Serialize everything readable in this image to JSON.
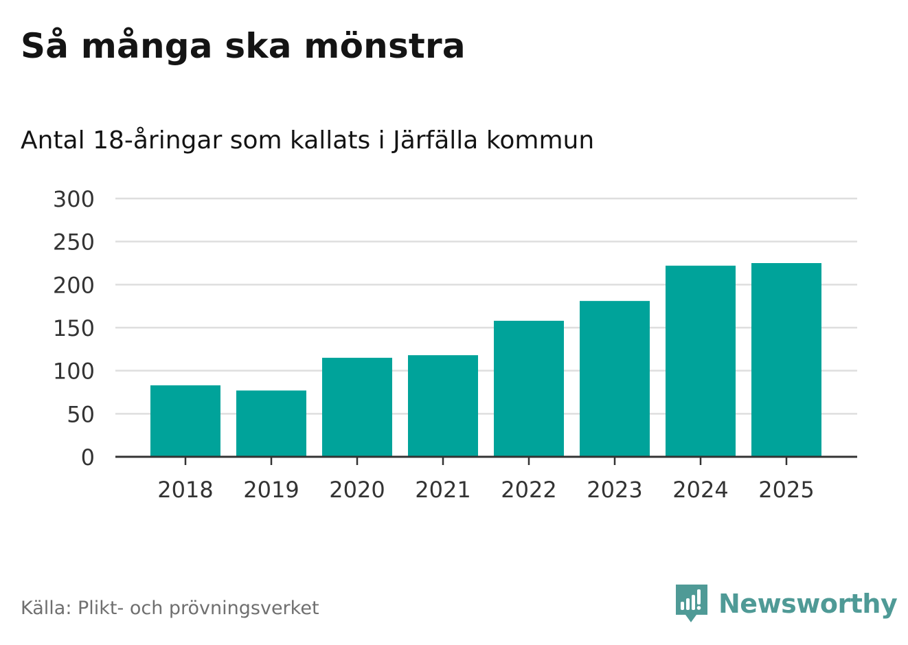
{
  "title": "Så många ska mönstra",
  "subtitle": "Antal 18-åringar som kallats i Järfälla kommun",
  "source": "Källa: Plikt- och prövningsverket",
  "brand": {
    "name": "Newsworthy",
    "icon": "newsworthy-logo-icon",
    "color": "#4f9a96"
  },
  "colors": {
    "bar": "#00a39a",
    "grid": "#dedede",
    "axis": "#333333",
    "text": "#333333"
  },
  "chart_data": {
    "type": "bar",
    "title": "Så många ska mönstra",
    "subtitle": "Antal 18-åringar som kallats i Järfälla kommun",
    "xlabel": "",
    "ylabel": "",
    "categories": [
      "2018",
      "2019",
      "2020",
      "2021",
      "2022",
      "2023",
      "2024",
      "2025"
    ],
    "values": [
      83,
      77,
      115,
      118,
      158,
      181,
      222,
      225
    ],
    "ylim": [
      0,
      300
    ],
    "yticks": [
      "0",
      "50",
      "100",
      "150",
      "200",
      "250",
      "300"
    ],
    "grid": true
  }
}
